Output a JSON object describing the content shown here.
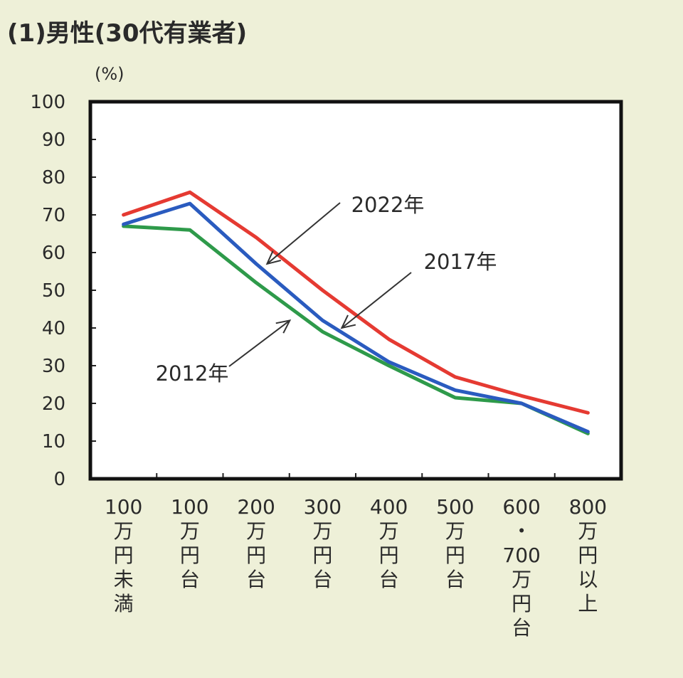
{
  "page_title": "(1)男性(30代有業者)",
  "y_unit": "(%)",
  "chart_data": {
    "type": "line",
    "title": "(1)男性(30代有業者)",
    "ylabel": "(%)",
    "xlabel": "",
    "ylim": [
      0,
      100
    ],
    "yticks": [
      0,
      10,
      20,
      30,
      40,
      50,
      60,
      70,
      80,
      90,
      100
    ],
    "grid": false,
    "categories": [
      "100\n万\n円\n未\n満",
      "100\n万\n円\n台",
      "200\n万\n円\n台",
      "300\n万\n円\n台",
      "400\n万\n円\n台",
      "500\n万\n円\n台",
      "600\n・\n700\n万\n円\n台",
      "800\n万\n円\n以\n上"
    ],
    "series": [
      {
        "name": "2022年",
        "color": "#e53a32",
        "values": [
          70,
          76,
          64,
          50,
          37,
          27,
          22,
          17.5
        ]
      },
      {
        "name": "2017年",
        "color": "#2a5bbf",
        "values": [
          67.5,
          73,
          57,
          42,
          31,
          23.5,
          20,
          12.5
        ]
      },
      {
        "name": "2012年",
        "color": "#2e9a4a",
        "values": [
          67,
          66,
          52,
          39,
          30,
          21.5,
          20,
          12
        ]
      }
    ]
  }
}
